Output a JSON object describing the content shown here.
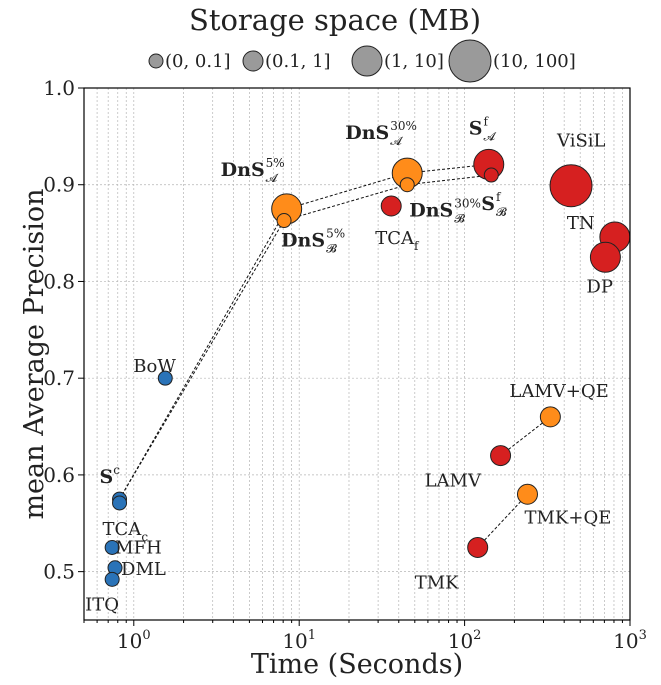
{
  "chart_data": {
    "type": "scatter",
    "title": "",
    "xlabel": "Time (Seconds)",
    "ylabel": "mean Average Precision",
    "xscale": "log",
    "xlim": [
      0.5,
      1000
    ],
    "ylim": [
      0.45,
      1.0
    ],
    "grid": true,
    "x_ticks": [
      {
        "value": 1,
        "label_base": "10",
        "label_exp": "0"
      },
      {
        "value": 10,
        "label_base": "10",
        "label_exp": "1"
      },
      {
        "value": 100,
        "label_base": "10",
        "label_exp": "2"
      },
      {
        "value": 1000,
        "label_base": "10",
        "label_exp": "3"
      }
    ],
    "y_ticks": [
      {
        "value": 0.5,
        "label": "0.5"
      },
      {
        "value": 0.6,
        "label": "0.6"
      },
      {
        "value": 0.7,
        "label": "0.7"
      },
      {
        "value": 0.8,
        "label": "0.8"
      },
      {
        "value": 0.9,
        "label": "0.9"
      },
      {
        "value": 1.0,
        "label": "1.0"
      }
    ],
    "legend": {
      "title": "Storage space (MB)",
      "placement": "top",
      "entries": [
        {
          "label": "(0, 0.1]",
          "size_class": 1
        },
        {
          "label": "(0.1, 1]",
          "size_class": 2
        },
        {
          "label": "(1, 10]",
          "size_class": 3
        },
        {
          "label": "(10, 100]",
          "size_class": 4
        }
      ]
    },
    "colors": {
      "blue": "#2a73b8",
      "orange": "#ff8c1a",
      "red": "#d62020"
    },
    "points": [
      {
        "id": "bow",
        "label": "BoW",
        "sub": "",
        "sup": "",
        "bold": false,
        "x": 1.55,
        "y": 0.7,
        "color": "blue",
        "size_class": 1
      },
      {
        "id": "sc",
        "label": "S",
        "sub": "",
        "sup": "c",
        "bold": true,
        "x": 0.82,
        "y": 0.575,
        "color": "blue",
        "size_class": 1
      },
      {
        "id": "tcac",
        "label": "TCA",
        "sub": "c",
        "sup": "",
        "bold": false,
        "x": 0.82,
        "y": 0.571,
        "color": "blue",
        "size_class": 1
      },
      {
        "id": "mfh",
        "label": "MFH",
        "sub": "",
        "sup": "",
        "bold": false,
        "x": 0.74,
        "y": 0.525,
        "color": "blue",
        "size_class": 1
      },
      {
        "id": "dml",
        "label": "DML",
        "sub": "",
        "sup": "",
        "bold": false,
        "x": 0.77,
        "y": 0.504,
        "color": "blue",
        "size_class": 1
      },
      {
        "id": "itq",
        "label": "ITQ",
        "sub": "",
        "sup": "",
        "bold": false,
        "x": 0.74,
        "y": 0.492,
        "color": "blue",
        "size_class": 1
      },
      {
        "id": "dns5a",
        "label": "DnS",
        "sub": "𝓐",
        "sup": "5%",
        "bold": true,
        "x": 8.4,
        "y": 0.875,
        "color": "orange",
        "size_class": 3
      },
      {
        "id": "dns5b",
        "label": "DnS",
        "sub": "𝓑",
        "sup": "5%",
        "bold": true,
        "x": 8.1,
        "y": 0.863,
        "color": "orange",
        "size_class": 1
      },
      {
        "id": "dns30a",
        "label": "DnS",
        "sub": "𝓐",
        "sup": "30%",
        "bold": true,
        "x": 45,
        "y": 0.912,
        "color": "orange",
        "size_class": 3
      },
      {
        "id": "dns30b",
        "label": "DnS",
        "sub": "𝓑",
        "sup": "30%",
        "bold": true,
        "x": 45,
        "y": 0.9,
        "color": "orange",
        "size_class": 1
      },
      {
        "id": "tcaf",
        "label": "TCA",
        "sub": "f",
        "sup": "",
        "bold": false,
        "x": 36,
        "y": 0.878,
        "color": "red",
        "size_class": 2
      },
      {
        "id": "sfa",
        "label": "S",
        "sub": "𝓐",
        "sup": "f",
        "bold": true,
        "x": 140,
        "y": 0.921,
        "color": "red",
        "size_class": 3
      },
      {
        "id": "sfb",
        "label": "S",
        "sub": "𝓑",
        "sup": "f",
        "bold": true,
        "x": 145,
        "y": 0.91,
        "color": "red",
        "size_class": 1
      },
      {
        "id": "visil",
        "label": "ViSiL",
        "sub": "",
        "sup": "",
        "bold": false,
        "x": 440,
        "y": 0.899,
        "color": "red",
        "size_class": 4
      },
      {
        "id": "tn",
        "label": "TN",
        "sub": "",
        "sup": "",
        "bold": false,
        "x": 810,
        "y": 0.846,
        "color": "red",
        "size_class": 3
      },
      {
        "id": "dp",
        "label": "DP",
        "sub": "",
        "sup": "",
        "bold": false,
        "x": 710,
        "y": 0.825,
        "color": "red",
        "size_class": 3
      },
      {
        "id": "lamvqe",
        "label": "LAMV+QE",
        "sub": "",
        "sup": "",
        "bold": false,
        "x": 330,
        "y": 0.66,
        "color": "orange",
        "size_class": 2
      },
      {
        "id": "lamv",
        "label": "LAMV",
        "sub": "",
        "sup": "",
        "bold": false,
        "x": 165,
        "y": 0.62,
        "color": "red",
        "size_class": 2
      },
      {
        "id": "tmkqe",
        "label": "TMK+QE",
        "sub": "",
        "sup": "",
        "bold": false,
        "x": 240,
        "y": 0.58,
        "color": "orange",
        "size_class": 2
      },
      {
        "id": "tmk",
        "label": "TMK",
        "sub": "",
        "sup": "",
        "bold": false,
        "x": 120,
        "y": 0.525,
        "color": "red",
        "size_class": 2
      }
    ],
    "connections": [
      [
        "sc",
        "dns5a"
      ],
      [
        "sc",
        "dns5b"
      ],
      [
        "dns5a",
        "dns30a"
      ],
      [
        "dns5b",
        "dns30b"
      ],
      [
        "dns30a",
        "sfa"
      ],
      [
        "dns30b",
        "sfb"
      ],
      [
        "lamv",
        "lamvqe"
      ],
      [
        "tmk",
        "tmkqe"
      ]
    ]
  }
}
